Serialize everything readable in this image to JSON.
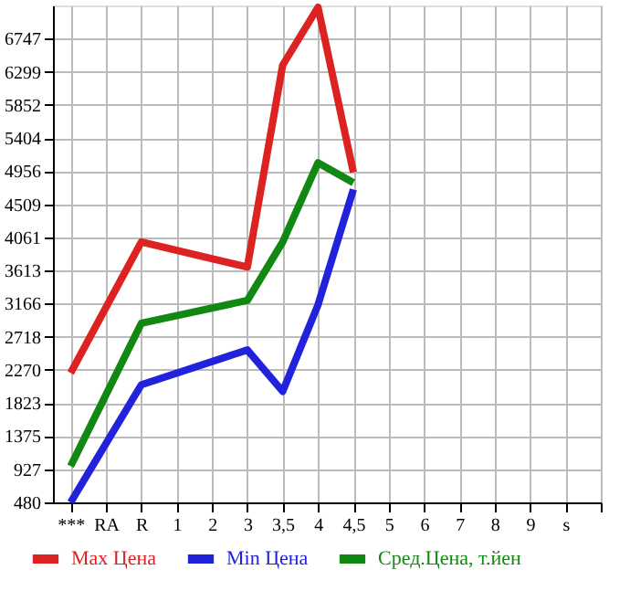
{
  "chart_data": {
    "type": "line",
    "categories": [
      "***",
      "RA",
      "R",
      "1",
      "2",
      "3",
      "3,5",
      "4",
      "4,5",
      "5",
      "6",
      "7",
      "8",
      "9",
      "s"
    ],
    "series": [
      {
        "name": "Max Цена",
        "color": "#dd2222",
        "values": [
          2230,
          null,
          4000,
          null,
          null,
          3660,
          6390,
          7170,
          4940,
          null,
          null,
          null,
          null,
          null,
          null
        ]
      },
      {
        "name": "Min Цена",
        "color": "#2222dd",
        "values": [
          480,
          null,
          2070,
          null,
          null,
          2540,
          1980,
          3150,
          4710,
          null,
          null,
          null,
          null,
          null,
          null
        ]
      },
      {
        "name": "Сред.Цена, т.йен",
        "color": "#118811",
        "values": [
          970,
          null,
          2900,
          null,
          null,
          3210,
          4000,
          5070,
          4800,
          null,
          null,
          null,
          null,
          null,
          null
        ]
      }
    ],
    "ylim": [
      480,
      7195
    ],
    "yticks": [
      480,
      927,
      1375,
      1823,
      2270,
      2718,
      3166,
      3613,
      4061,
      4509,
      4956,
      5404,
      5852,
      6299,
      6747
    ],
    "grid": true,
    "legend": "bottom",
    "marker": "none",
    "line_style": "solid"
  }
}
